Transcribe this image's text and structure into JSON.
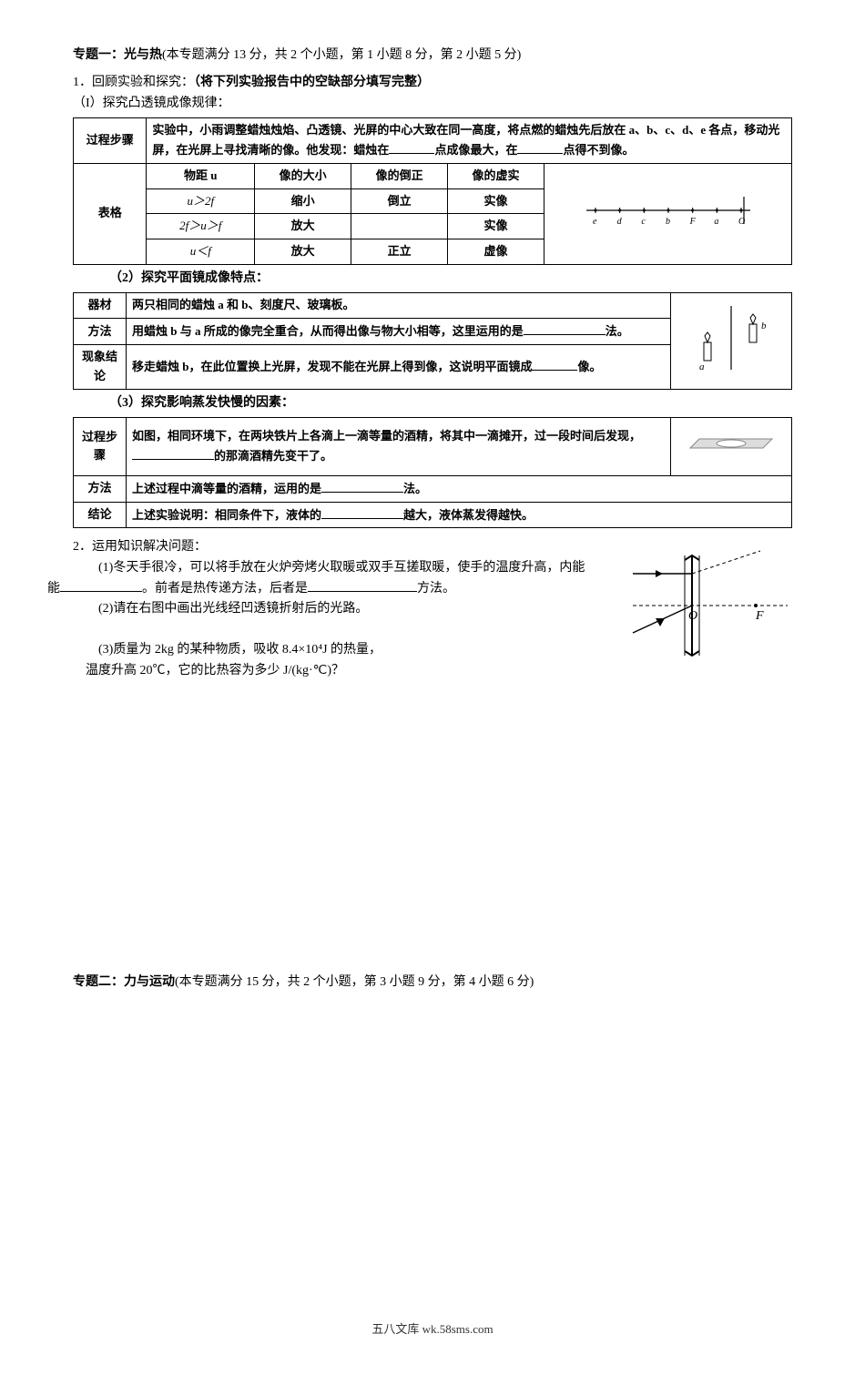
{
  "topic1": {
    "title": "专题一：光与热",
    "score": "(本专题满分 13 分，共 2 个小题，第 1 小题 8 分，第 2 小题 5 分)",
    "q1": "1．回顾实验和探究：",
    "q1_bold": "（将下列实验报告中的空缺部分填写完整）",
    "sub1": "（I）探究凸透镜成像规律：",
    "exp1": {
      "proc_label": "过程步骤",
      "proc_text1": "实验中，小雨调整蜡烛烛焰、凸透镜、光屏的中心大致在同一高度，将点燃的蜡烛先后放在 a、b、c、d、e 各点，移动光屏，在光屏上寻找清晰的像。他发现：蜡烛在",
      "proc_text2": "点成像最大，在",
      "proc_text3": "点得不到像。",
      "table_label": "表格",
      "headers": [
        "物距 u",
        "像的大小",
        "像的倒正",
        "像的虚实"
      ],
      "rows": [
        [
          "u＞2f",
          "缩小",
          "倒立",
          "实像"
        ],
        [
          "2f＞u＞f",
          "放大",
          "",
          "实像"
        ],
        [
          "u＜f",
          "放大",
          "正立",
          "虚像"
        ]
      ],
      "axis": {
        "labels": [
          "e",
          "d",
          "c",
          "b",
          "F",
          "a",
          "O"
        ],
        "colors": {
          "line": "#000",
          "tick": "#000"
        }
      }
    },
    "sub2": "（2）探究平面镜成像特点：",
    "exp2": {
      "rows": [
        {
          "label": "器材",
          "text": "两只相同的蜡烛 a 和 b、刻度尺、玻璃板。"
        },
        {
          "label": "方法",
          "text1": "用蜡烛 b 与 a 所成的像完全重合，从而得出像与物大小相等，这里运用的是",
          "text2": "法。"
        },
        {
          "label": "现象结论",
          "text1": "移走蜡烛 b，在此位置换上光屏，发现不能在光屏上得到像，这说明平面镜成",
          "text2": "像。"
        }
      ],
      "candle": {
        "a_label": "a",
        "b_label": "b",
        "mirror_color": "#666",
        "candle_color": "#000"
      }
    },
    "sub3": "（3）探究影响蒸发快慢的因素：",
    "exp3": {
      "proc_label": "过程步骤",
      "proc_text1": "如图，相同环境下，在两块铁片上各滴上一滴等量的酒精，将其中一滴摊开，过一段时间后发现，",
      "proc_text2": "的那滴酒精先变干了。",
      "method_label": "方法",
      "method_text1": "上述过程中滴等量的酒精，运用的是",
      "method_text2": "法。",
      "concl_label": "结论",
      "concl_text1": "上述实验说明：相同条件下，液体的",
      "concl_text2": "越大，液体蒸发得越快。",
      "plate_color": "#888"
    },
    "q2_intro": "2．运用知识解决问题：",
    "q2_1a": "(1)冬天手很冷，可以将手放在火炉旁烤火取暖或双手互搓取暖，使手的温度升高，内能",
    "q2_1b": "。前者是热传递方法，后者是",
    "q2_1c": "方法。",
    "q2_2": "(2)请在右图中画出光线经凹透镜折射后的光路。",
    "q2_3a": "(3)质量为 2kg 的某种物质，吸收 8.4×10⁴J 的热量，",
    "q2_3b": "温度升高 20℃，它的比热容为多少 J/(kg·℃)？",
    "lens": {
      "O": "O",
      "F": "F",
      "line_color": "#000"
    }
  },
  "topic2": {
    "title": "专题二：力与运动",
    "score": "(本专题满分 15 分，共 2 个小题，第 3 小题 9 分，第 4 小题 6 分)"
  },
  "footer": "五八文库 wk.58sms.com"
}
